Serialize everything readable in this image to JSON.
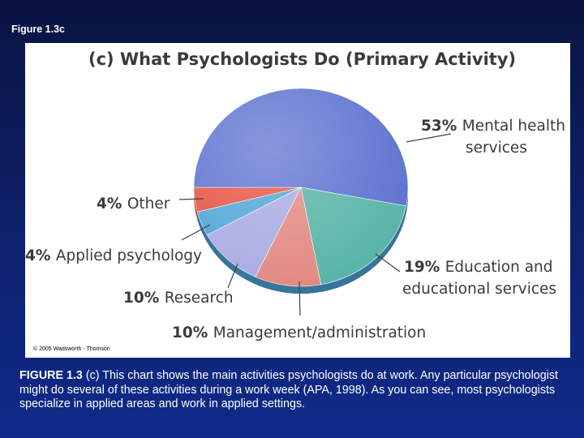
{
  "slide_title": "Figure 1.3c",
  "copyright": "© 2005 Wadsworth - Thomson",
  "caption": {
    "lead": "FIGURE 1.3",
    "text": " (c) This chart shows the main activities psychologists do at work. Any particular psychologist might do several of these activities during a work week (APA, 1998). As you can see, most psychologists specialize in applied areas and work in applied settings."
  },
  "colors": {
    "mental_health": "#5a6fcf",
    "education": "#55b3a6",
    "management": "#e2877e",
    "research": "#a8a9e2",
    "applied": "#4da3d6",
    "other": "#e5503f"
  },
  "chart_data": {
    "type": "pie",
    "title": "(c) What Psychologists Do (Primary Activity)",
    "slices": [
      {
        "key": "mental_health",
        "value": 53,
        "pct": "53%",
        "label_lines": [
          "Mental health",
          "services"
        ]
      },
      {
        "key": "education",
        "value": 19,
        "pct": "19%",
        "label_lines": [
          "Education and",
          "educational services"
        ]
      },
      {
        "key": "management",
        "value": 10,
        "pct": "10%",
        "label_lines": [
          "Management/administration"
        ]
      },
      {
        "key": "research",
        "value": 10,
        "pct": "10%",
        "label_lines": [
          "Research"
        ]
      },
      {
        "key": "applied",
        "value": 4,
        "pct": "4%",
        "label_lines": [
          "Applied psychology"
        ]
      },
      {
        "key": "other",
        "value": 4,
        "pct": "4%",
        "label_lines": [
          "Other"
        ]
      }
    ]
  }
}
